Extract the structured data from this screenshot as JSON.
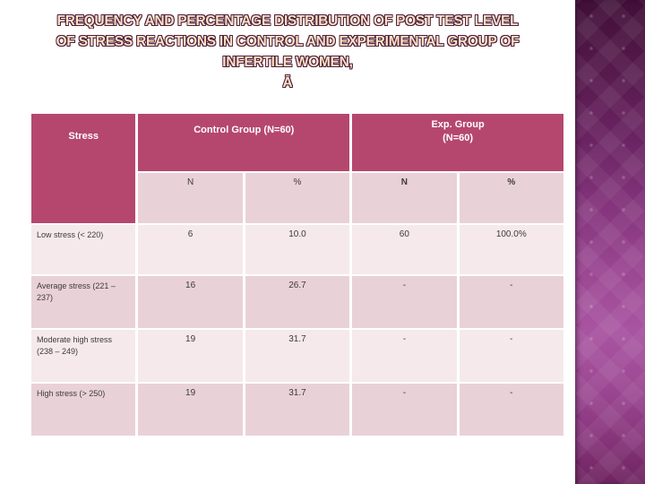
{
  "slide": {
    "title_lines": [
      "FREQUENCY AND PERCENTAGE DISTRIBUTION OF POST TEST LEVEL",
      "OF STRESS REACTIONS IN CONTROL AND EXPERIMENTAL GROUP OF",
      "INFERTILE WOMEN,",
      "Ā"
    ]
  },
  "table": {
    "stress_header": "Stress",
    "control_group_header": "Control Group (N=60)",
    "exp_group_header": {
      "line1": "Exp. Group",
      "line2": "(N=60)"
    },
    "subheaders": {
      "control_n": "N",
      "control_pct": "%",
      "exp_n": "N",
      "exp_pct": "%"
    },
    "rows": [
      {
        "label": "Low stress (< 220)",
        "control_n": "6",
        "control_pct": "10.0",
        "exp_n": "60",
        "exp_pct": "100.0%"
      },
      {
        "label": "Average stress (221 – 237)",
        "control_n": "16",
        "control_pct": "26.7",
        "exp_n": "-",
        "exp_pct": "-"
      },
      {
        "label": "Moderate high stress (238 – 249)",
        "control_n": "19",
        "control_pct": "31.7",
        "exp_n": "-",
        "exp_pct": "-"
      },
      {
        "label": "High stress (> 250)",
        "control_n": "19",
        "control_pct": "31.7",
        "exp_n": "-",
        "exp_pct": "-"
      }
    ]
  },
  "colors": {
    "header_bg": "#b5476e",
    "row_light": "#f5e9ec",
    "row_dark": "#e9d1d8",
    "title_fill": "#fbe2c5",
    "title_outline": "#4f1f3c",
    "band_top": "#400f38",
    "band_mid": "#a854a0",
    "band_bottom": "#6e2360"
  }
}
